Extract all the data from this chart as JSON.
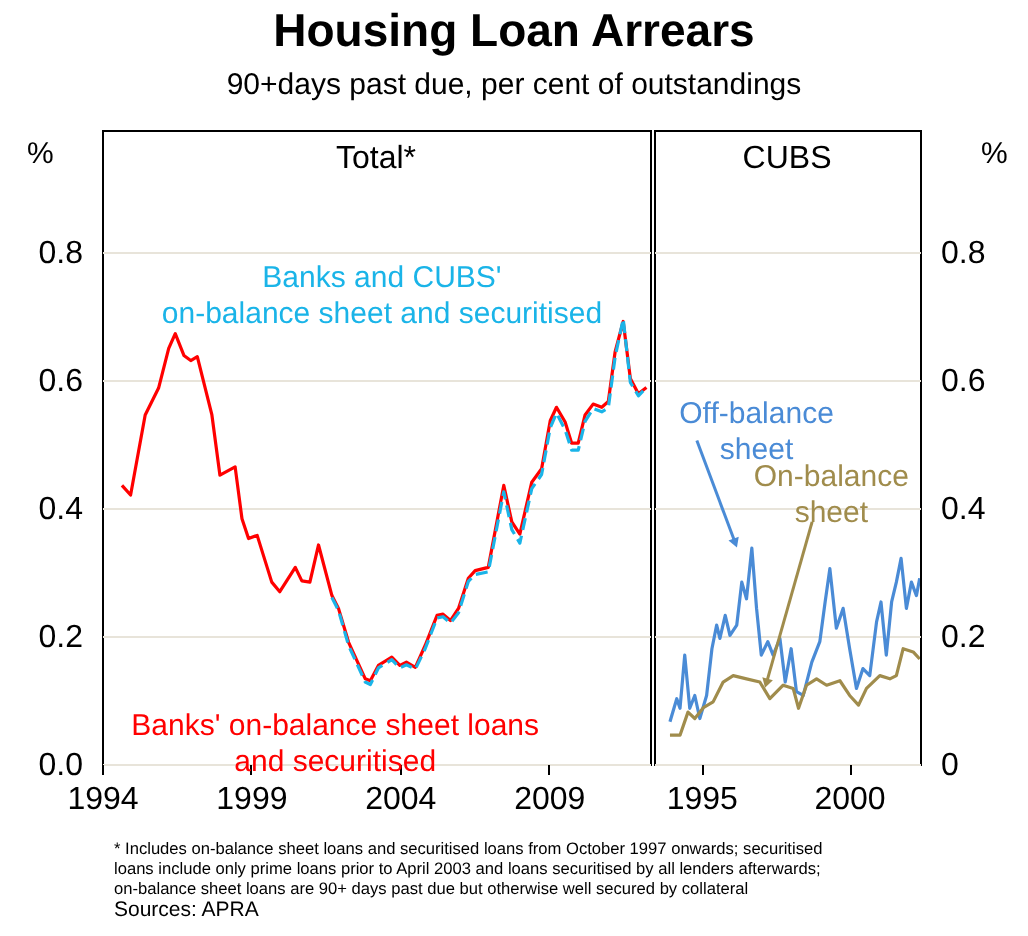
{
  "chart_data": [
    {
      "type": "line",
      "title": "Housing Loan Arrears",
      "subtitle": "90+days past due, per cent of outstandings",
      "ylabel": "%",
      "annotations": [
        "Total*",
        "* Includes on-balance sheet loans and securitised loans from October 1997 onwards; securitised loans include only prime loans prior to April 2003 and loans securitised by all lenders afterwards; on-balance sheet loans are 90+ days past due but otherwise well secured by collateral",
        "Sources: APRA"
      ],
      "xlim": [
        1994,
        2012.4
      ],
      "xticks": [
        1994,
        1999,
        2004,
        2009
      ],
      "ylim": [
        0,
        0.99
      ],
      "yticks": [
        {
          "value": 0,
          "label": "0.0"
        },
        0.2,
        0.4,
        0.6,
        0.8
      ],
      "grid": "y",
      "series": [
        {
          "name": "Banks' on-balance sheet loans and securitised",
          "color": "#ff0000",
          "line_style": "solid",
          "x": [
            1994.67,
            1994.96,
            1995.45,
            1995.9,
            1996.24,
            1996.46,
            1996.75,
            1996.98,
            1997.2,
            1997.69,
            1997.96,
            1998.47,
            1998.7,
            1998.92,
            1999.21,
            1999.7,
            1999.97,
            2000.49,
            2000.71,
            2000.98,
            2001.27,
            2001.72,
            2001.94,
            2002.28,
            2002.84,
            2003.01,
            2003.28,
            2003.73,
            2004.0,
            2004.22,
            2004.52,
            2004.85,
            2005.25,
            2005.45,
            2005.7,
            2005.97,
            2006.3,
            2006.53,
            2006.97,
            2007.49,
            2007.76,
            2008.03,
            2008.43,
            2008.76,
            2009.05,
            2009.26,
            2009.55,
            2009.77,
            2009.99,
            2010.22,
            2010.49,
            2010.78,
            2011.0,
            2011.23,
            2011.5,
            2011.74,
            2012.01,
            2012.28
          ],
          "values": [
            0.435,
            0.42,
            0.545,
            0.587,
            0.649,
            0.672,
            0.638,
            0.63,
            0.636,
            0.545,
            0.451,
            0.464,
            0.383,
            0.352,
            0.357,
            0.284,
            0.269,
            0.307,
            0.286,
            0.284,
            0.342,
            0.263,
            0.243,
            0.19,
            0.133,
            0.13,
            0.154,
            0.167,
            0.154,
            0.159,
            0.151,
            0.185,
            0.232,
            0.234,
            0.224,
            0.243,
            0.29,
            0.302,
            0.307,
            0.435,
            0.378,
            0.359,
            0.44,
            0.461,
            0.536,
            0.557,
            0.534,
            0.501,
            0.501,
            0.545,
            0.562,
            0.557,
            0.566,
            0.644,
            0.691,
            0.602,
            0.578,
            0.588
          ]
        },
        {
          "name": "Banks and CUBS' on-balance sheet and securitised",
          "color": "#1ab4e8",
          "line_style": "dashed",
          "x": [
            2001.72,
            2001.94,
            2002.28,
            2002.84,
            2003.01,
            2003.28,
            2003.73,
            2004.0,
            2004.22,
            2004.52,
            2004.85,
            2005.25,
            2005.45,
            2005.7,
            2005.97,
            2006.3,
            2006.53,
            2006.97,
            2007.49,
            2007.76,
            2008.03,
            2008.43,
            2008.76,
            2009.05,
            2009.26,
            2009.55,
            2009.77,
            2009.99,
            2010.22,
            2010.49,
            2010.78,
            2011.0,
            2011.23,
            2011.5,
            2011.74,
            2012.01,
            2012.28
          ],
          "values": [
            0.26,
            0.24,
            0.185,
            0.128,
            0.124,
            0.15,
            0.163,
            0.15,
            0.155,
            0.148,
            0.18,
            0.228,
            0.23,
            0.22,
            0.236,
            0.285,
            0.296,
            0.3,
            0.425,
            0.366,
            0.345,
            0.43,
            0.452,
            0.525,
            0.548,
            0.522,
            0.49,
            0.49,
            0.535,
            0.555,
            0.55,
            0.556,
            0.636,
            0.695,
            0.596,
            0.575,
            0.588
          ]
        }
      ]
    },
    {
      "type": "line",
      "ylabel": "%",
      "annotations": [
        "CUBS"
      ],
      "xlim": [
        1993.4,
        2002.4
      ],
      "xticks": [
        1995,
        2000
      ],
      "ylim": [
        0,
        0.99
      ],
      "yticks": [
        0,
        0.2,
        0.4,
        0.6,
        0.8
      ],
      "grid": "y",
      "series": [
        {
          "name": "Off-balance sheet",
          "color": "#4a8bd6",
          "line_style": "solid",
          "x": [
            1993.94,
            1994.17,
            1994.28,
            1994.44,
            1994.61,
            1994.78,
            1994.95,
            1995.18,
            1995.36,
            1995.52,
            1995.63,
            1995.81,
            1995.97,
            1996.2,
            1996.37,
            1996.53,
            1996.71,
            1996.87,
            1997.03,
            1997.25,
            1997.43,
            1997.66,
            1997.84,
            1998.04,
            1998.22,
            1998.45,
            1998.74,
            1999.01,
            1999.19,
            1999.35,
            1999.57,
            1999.8,
            2000.02,
            2000.25,
            2000.47,
            2000.7,
            2000.93,
            2001.08,
            2001.26,
            2001.44,
            2001.6,
            2001.76,
            2001.94,
            2002.11,
            2002.28,
            2002.39
          ],
          "values": [
            0.066,
            0.102,
            0.087,
            0.17,
            0.087,
            0.107,
            0.071,
            0.107,
            0.18,
            0.217,
            0.196,
            0.232,
            0.201,
            0.217,
            0.284,
            0.258,
            0.337,
            0.243,
            0.17,
            0.191,
            0.17,
            0.196,
            0.128,
            0.18,
            0.113,
            0.107,
            0.159,
            0.191,
            0.253,
            0.305,
            0.212,
            0.243,
            0.18,
            0.118,
            0.149,
            0.138,
            0.222,
            0.253,
            0.17,
            0.253,
            0.284,
            0.321,
            0.243,
            0.284,
            0.263,
            0.29
          ]
        },
        {
          "name": "On-balance sheet",
          "color": "#a08c4c",
          "line_style": "solid",
          "x": [
            1993.94,
            1994.28,
            1994.55,
            1994.78,
            1995.07,
            1995.4,
            1995.74,
            1996.08,
            1996.53,
            1996.98,
            1997.32,
            1997.77,
            1998.11,
            1998.29,
            1998.56,
            1998.9,
            1999.24,
            1999.69,
            2000.02,
            2000.32,
            2000.59,
            2001.04,
            2001.38,
            2001.6,
            2001.83,
            2002.17,
            2002.39
          ],
          "values": [
            0.045,
            0.045,
            0.081,
            0.071,
            0.088,
            0.097,
            0.128,
            0.138,
            0.133,
            0.128,
            0.102,
            0.123,
            0.118,
            0.087,
            0.123,
            0.133,
            0.123,
            0.13,
            0.107,
            0.092,
            0.118,
            0.138,
            0.133,
            0.138,
            0.18,
            0.175,
            0.164
          ]
        }
      ]
    }
  ]
}
